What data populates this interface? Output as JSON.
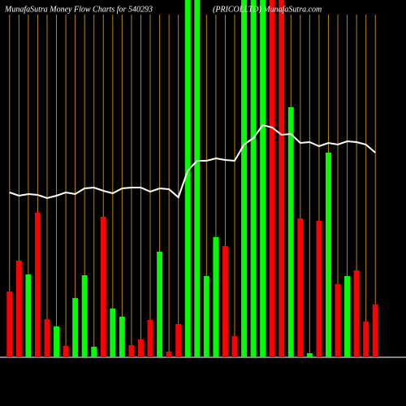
{
  "chart_data": {
    "type": "bar",
    "title": "MunafaSutra  Money Flow  Charts for 540293",
    "subtitle": "(PRICOLLTD) MunafaSutra.com",
    "categories": [
      null,
      null,
      null,
      null,
      null,
      null,
      null,
      null,
      null,
      null,
      null,
      null,
      null,
      null,
      null,
      null,
      null,
      null,
      null,
      null,
      null,
      null,
      null,
      null,
      null,
      null,
      null,
      null,
      null,
      null,
      null,
      null,
      null,
      null,
      null,
      null,
      null,
      null,
      null,
      null
    ],
    "values": [
      81,
      119,
      102,
      178,
      47,
      38,
      14,
      73,
      101,
      13,
      173,
      60,
      50,
      15,
      22,
      46,
      130,
      7,
      41,
      450,
      450,
      100,
      148,
      137,
      26,
      450,
      450,
      450,
      450,
      450,
      308,
      171,
      5,
      168,
      252,
      90,
      100,
      107,
      44,
      65
    ],
    "colors": [
      "#ff0000",
      "#ff0000",
      "#00ff00",
      "#ff0000",
      "#ff0000",
      "#00ff00",
      "#ff0000",
      "#00ff00",
      "#00ff00",
      "#00ff00",
      "#ff0000",
      "#00ff00",
      "#00ff00",
      "#ff0000",
      "#ff0000",
      "#ff0000",
      "#00ff00",
      "#ff0000",
      "#ff0000",
      "#00ff00",
      "#00ff00",
      "#00ff00",
      "#00ff00",
      "#ff0000",
      "#ff0000",
      "#00ff00",
      "#00ff00",
      "#00ff00",
      "#ff0000",
      "#ff0000",
      "#00ff00",
      "#ff0000",
      "#00ff00",
      "#ff0000",
      "#00ff00",
      "#ff0000",
      "#00ff00",
      "#ff0000",
      "#ff0000",
      "#ff0000"
    ],
    "line_values": [
      203,
      199,
      201,
      200,
      196,
      199,
      203,
      201,
      208,
      209,
      205,
      202,
      208,
      209,
      209,
      204,
      208,
      207,
      197,
      230,
      242,
      242,
      245,
      243,
      242,
      262,
      270,
      286,
      283,
      274,
      275,
      264,
      265,
      260,
      264,
      262,
      266,
      265,
      262,
      252
    ],
    "line_color": "#ffffff",
    "ylim": [
      0,
      440
    ],
    "grid": true,
    "grid_color": "#b8860b"
  }
}
